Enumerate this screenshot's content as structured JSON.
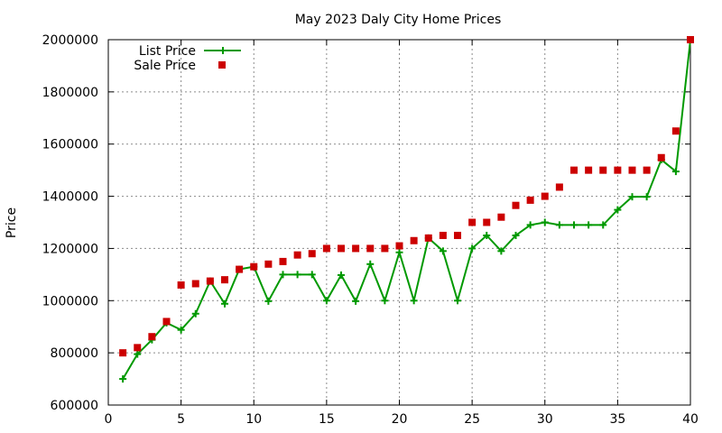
{
  "chart_data": {
    "type": "line",
    "title": "May 2023 Daly City Home Prices",
    "xlabel": "",
    "ylabel": "Price",
    "xlim": [
      0,
      40
    ],
    "ylim": [
      600000,
      2000000
    ],
    "xticks": [
      "0",
      "5",
      "10",
      "15",
      "20",
      "25",
      "30",
      "35",
      "40"
    ],
    "yticks": [
      "600000",
      "800000",
      "1000000",
      "1200000",
      "1400000",
      "1600000",
      "1800000",
      "2000000"
    ],
    "grid": true,
    "legend_position": "top-left",
    "x": [
      1,
      2,
      3,
      4,
      5,
      6,
      7,
      8,
      9,
      10,
      11,
      12,
      13,
      14,
      15,
      16,
      17,
      18,
      19,
      20,
      21,
      22,
      23,
      24,
      25,
      26,
      27,
      28,
      29,
      30,
      31,
      32,
      33,
      34,
      35,
      36,
      37,
      38,
      39,
      40
    ],
    "series": [
      {
        "name": "List Price",
        "style": "line+cross",
        "color": "#009900",
        "values": [
          700000,
          795000,
          850000,
          915000,
          888000,
          950000,
          1075000,
          988000,
          1120000,
          1130000,
          998000,
          1100000,
          1100000,
          1100000,
          1000000,
          1098000,
          998000,
          1140000,
          1000000,
          1185000,
          1000000,
          1240000,
          1190000,
          1000000,
          1200000,
          1250000,
          1190000,
          1250000,
          1290000,
          1300000,
          1290000,
          1290000,
          1290000,
          1290000,
          1348000,
          1398000,
          1398000,
          1540000,
          1495000,
          2000000
        ]
      },
      {
        "name": "Sale Price",
        "style": "square",
        "color": "#cc0000",
        "values": [
          800000,
          820000,
          862000,
          920000,
          1060000,
          1065000,
          1075000,
          1080000,
          1120000,
          1130000,
          1140000,
          1150000,
          1175000,
          1180000,
          1200000,
          1200000,
          1200000,
          1200000,
          1200000,
          1210000,
          1230000,
          1240000,
          1250000,
          1250000,
          1300000,
          1300000,
          1320000,
          1365000,
          1385000,
          1400000,
          1435000,
          1500000,
          1500000,
          1500000,
          1500000,
          1500000,
          1500000,
          1548000,
          1650000,
          2000000
        ]
      }
    ]
  }
}
